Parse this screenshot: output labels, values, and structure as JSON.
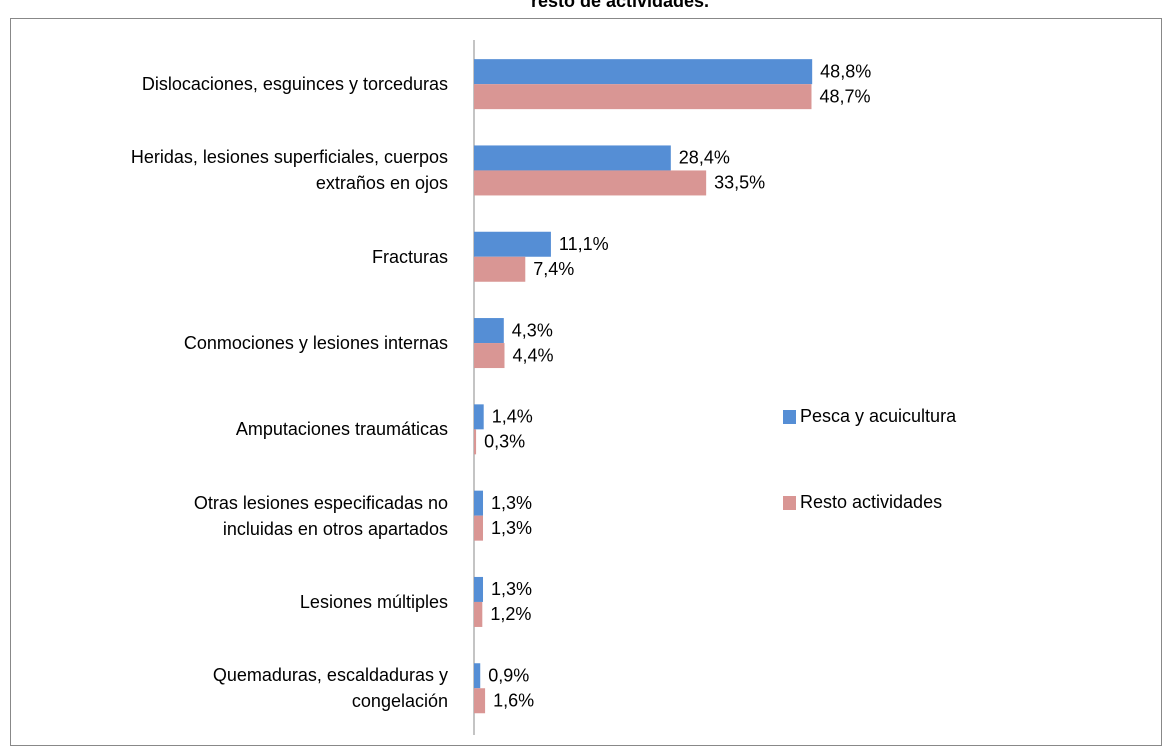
{
  "chart_data": {
    "type": "bar",
    "orientation": "horizontal",
    "title": "resto de actividades.",
    "categories": [
      "Dislocaciones, esguinces y torceduras",
      "Heridas, lesiones superficiales, cuerpos\nextraños en ojos",
      "Fracturas",
      "Conmociones y lesiones internas",
      "Amputaciones traumáticas",
      "Otras lesiones especificadas no\nincluidas en otros apartados",
      "Lesiones múltiples",
      "Quemaduras, escaldaduras y\ncongelación"
    ],
    "series": [
      {
        "name": "Pesca y acuicultura",
        "color": "#558ed5",
        "values": [
          48.8,
          28.4,
          11.1,
          4.3,
          1.4,
          1.3,
          1.3,
          0.9
        ],
        "value_labels": [
          "48,8%",
          "28,4%",
          "11,1%",
          "4,3%",
          "1,4%",
          "1,3%",
          "1,3%",
          "0,9%"
        ]
      },
      {
        "name": "Resto actividades",
        "color": "#d99694",
        "values": [
          48.7,
          33.5,
          7.4,
          4.4,
          0.3,
          1.3,
          1.2,
          1.6
        ],
        "value_labels": [
          "48,7%",
          "33,5%",
          "7,4%",
          "4,4%",
          "0,3%",
          "1,3%",
          "1,2%",
          "1,6%"
        ]
      }
    ],
    "xlim": [
      0,
      100
    ],
    "legend": "right"
  }
}
